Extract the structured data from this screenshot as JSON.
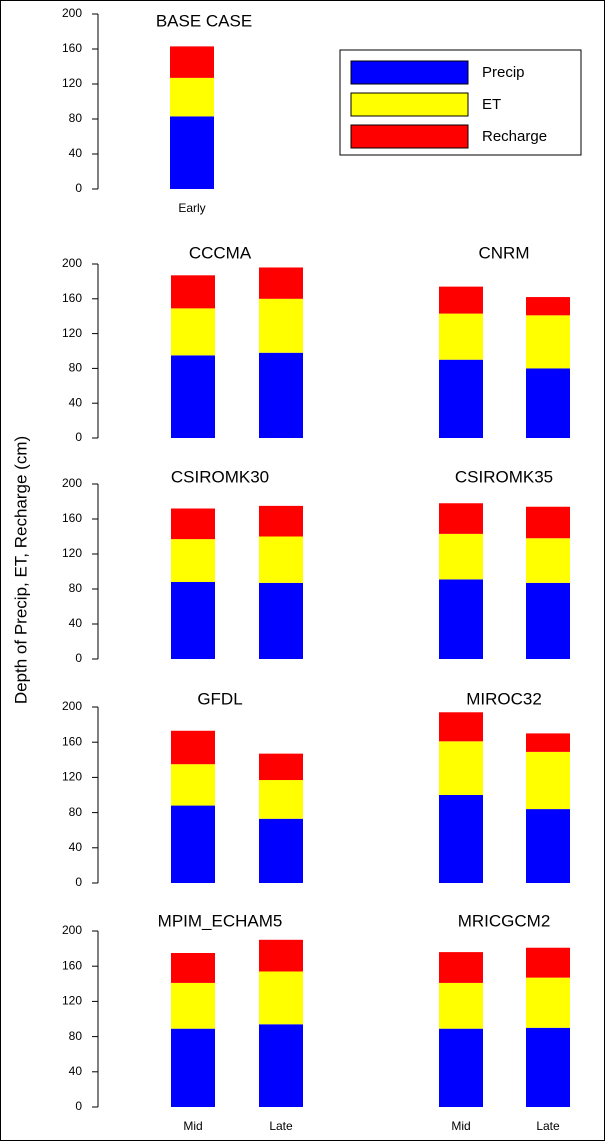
{
  "ylabel": "Depth of Precip, ET, Recharge (cm)",
  "chart_data": [
    {
      "type": "bar",
      "stacked": true,
      "title": "BASE CASE",
      "categories": [
        "Early"
      ],
      "legend": "top-right",
      "series": [
        {
          "name": "Precip",
          "color": "#0000ff",
          "values": [
            83
          ]
        },
        {
          "name": "ET",
          "color": "#ffff00",
          "values": [
            44
          ]
        },
        {
          "name": "Recharge",
          "color": "#ff0000",
          "values": [
            36
          ]
        }
      ],
      "ylim": [
        0,
        200
      ],
      "yticks": [
        0,
        40,
        80,
        120,
        160,
        200
      ]
    },
    {
      "type": "bar",
      "stacked": true,
      "title": "CCCMA",
      "categories": [
        null,
        null
      ],
      "series": [
        {
          "color": "#0000ff",
          "values": [
            95,
            98
          ]
        },
        {
          "color": "#ffff00",
          "values": [
            54,
            62
          ]
        },
        {
          "color": "#ff0000",
          "values": [
            38,
            36
          ]
        }
      ],
      "ylim": [
        0,
        200
      ],
      "yticks": [
        0,
        40,
        80,
        120,
        160,
        200
      ]
    },
    {
      "type": "bar",
      "stacked": true,
      "title": "CNRM",
      "categories": [
        null,
        null
      ],
      "series": [
        {
          "color": "#0000ff",
          "values": [
            90,
            80
          ]
        },
        {
          "color": "#ffff00",
          "values": [
            53,
            61
          ]
        },
        {
          "color": "#ff0000",
          "values": [
            31,
            21
          ]
        }
      ],
      "ylim": [
        0,
        200
      ]
    },
    {
      "type": "bar",
      "stacked": true,
      "title": "CSIROMK30",
      "categories": [
        null,
        null
      ],
      "series": [
        {
          "color": "#0000ff",
          "values": [
            88,
            87
          ]
        },
        {
          "color": "#ffff00",
          "values": [
            49,
            53
          ]
        },
        {
          "color": "#ff0000",
          "values": [
            35,
            35
          ]
        }
      ],
      "ylim": [
        0,
        200
      ],
      "yticks": [
        0,
        40,
        80,
        120,
        160,
        200
      ]
    },
    {
      "type": "bar",
      "stacked": true,
      "title": "CSIROMK35",
      "categories": [
        null,
        null
      ],
      "series": [
        {
          "color": "#0000ff",
          "values": [
            91,
            87
          ]
        },
        {
          "color": "#ffff00",
          "values": [
            52,
            51
          ]
        },
        {
          "color": "#ff0000",
          "values": [
            35,
            36
          ]
        }
      ],
      "ylim": [
        0,
        200
      ]
    },
    {
      "type": "bar",
      "stacked": true,
      "title": "GFDL",
      "categories": [
        null,
        null
      ],
      "series": [
        {
          "color": "#0000ff",
          "values": [
            88,
            73
          ]
        },
        {
          "color": "#ffff00",
          "values": [
            47,
            44
          ]
        },
        {
          "color": "#ff0000",
          "values": [
            38,
            30
          ]
        }
      ],
      "ylim": [
        0,
        200
      ],
      "yticks": [
        0,
        40,
        80,
        120,
        160,
        200
      ]
    },
    {
      "type": "bar",
      "stacked": true,
      "title": "MIROC32",
      "categories": [
        null,
        null
      ],
      "series": [
        {
          "color": "#0000ff",
          "values": [
            100,
            84
          ]
        },
        {
          "color": "#ffff00",
          "values": [
            61,
            65
          ]
        },
        {
          "color": "#ff0000",
          "values": [
            33,
            21
          ]
        }
      ],
      "ylim": [
        0,
        200
      ]
    },
    {
      "type": "bar",
      "stacked": true,
      "title": "MPIM_ECHAM5",
      "categories": [
        "Mid",
        "Late"
      ],
      "series": [
        {
          "color": "#0000ff",
          "values": [
            89,
            94
          ]
        },
        {
          "color": "#ffff00",
          "values": [
            52,
            60
          ]
        },
        {
          "color": "#ff0000",
          "values": [
            34,
            36
          ]
        }
      ],
      "ylim": [
        0,
        200
      ],
      "yticks": [
        0,
        40,
        80,
        120,
        160,
        200
      ]
    },
    {
      "type": "bar",
      "stacked": true,
      "title": "MRICGCM2",
      "categories": [
        "Mid",
        "Late"
      ],
      "series": [
        {
          "color": "#0000ff",
          "values": [
            89,
            90
          ]
        },
        {
          "color": "#ffff00",
          "values": [
            52,
            57
          ]
        },
        {
          "color": "#ff0000",
          "values": [
            35,
            34
          ]
        }
      ],
      "ylim": [
        0,
        200
      ]
    }
  ]
}
